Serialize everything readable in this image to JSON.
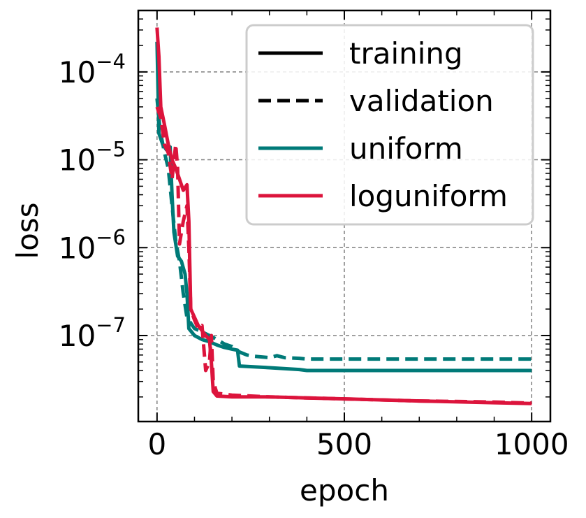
{
  "chart_data": {
    "type": "line",
    "title": "",
    "xlabel": "epoch",
    "ylabel": "loss",
    "xlim": [
      -50,
      1050
    ],
    "ylim": [
      1.05e-08,
      0.0005
    ],
    "yscale": "log",
    "grid": true,
    "legend_position": "top-right",
    "x_ticks": [
      {
        "value": 0,
        "label": "0"
      },
      {
        "value": 500,
        "label": "500"
      },
      {
        "value": 1000,
        "label": "1000"
      }
    ],
    "y_ticks": [
      {
        "value": 1e-07,
        "base": "10",
        "exp": "−7"
      },
      {
        "value": 1e-06,
        "base": "10",
        "exp": "−6"
      },
      {
        "value": 1e-05,
        "base": "10",
        "exp": "−5"
      },
      {
        "value": 0.0001,
        "base": "10",
        "exp": "−4"
      }
    ],
    "legend": [
      {
        "label": "training",
        "color": "#000000",
        "dash": false
      },
      {
        "label": "validation",
        "color": "#000000",
        "dash": true
      },
      {
        "label": "uniform",
        "color": "#007a78",
        "dash": false
      },
      {
        "label": "loguniform",
        "color": "#dc143c",
        "dash": false
      }
    ],
    "series": [
      {
        "group": "uniform",
        "kind": "validation",
        "color": "#007a78",
        "dash": true,
        "points": [
          [
            0,
            5e-05
          ],
          [
            8,
            2.2e-05
          ],
          [
            20,
            1.2e-05
          ],
          [
            30,
            8e-06
          ],
          [
            40,
            3e-06
          ],
          [
            50,
            1.2e-06
          ],
          [
            60,
            7e-07
          ],
          [
            70,
            3e-07
          ],
          [
            80,
            1.6e-07
          ],
          [
            100,
            1.2e-07
          ],
          [
            120,
            1.1e-07
          ],
          [
            140,
            1e-07
          ],
          [
            160,
            9e-08
          ],
          [
            180,
            8e-08
          ],
          [
            200,
            7.5e-08
          ],
          [
            220,
            6.5e-08
          ],
          [
            240,
            6e-08
          ],
          [
            260,
            5.8e-08
          ],
          [
            300,
            5.6e-08
          ],
          [
            320,
            5.9e-08
          ],
          [
            340,
            5.6e-08
          ],
          [
            380,
            5.5e-08
          ],
          [
            400,
            5.4e-08
          ],
          [
            500,
            5.4e-08
          ],
          [
            1000,
            5.4e-08
          ]
        ]
      },
      {
        "group": "uniform",
        "kind": "training",
        "color": "#007a78",
        "dash": false,
        "points": [
          [
            0,
            0.00022
          ],
          [
            5,
            2e-05
          ],
          [
            15,
            1.5e-05
          ],
          [
            25,
            1.3e-05
          ],
          [
            35,
            1.4e-05
          ],
          [
            40,
            4e-06
          ],
          [
            45,
            1.5e-06
          ],
          [
            55,
            8e-07
          ],
          [
            65,
            7e-07
          ],
          [
            75,
            5e-07
          ],
          [
            80,
            3e-07
          ],
          [
            85,
            1.2e-07
          ],
          [
            100,
            1e-07
          ],
          [
            120,
            9e-08
          ],
          [
            140,
            8.5e-08
          ],
          [
            160,
            7.8e-08
          ],
          [
            180,
            7.3e-08
          ],
          [
            200,
            7e-08
          ],
          [
            215,
            6.8e-08
          ],
          [
            220,
            4.5e-08
          ],
          [
            300,
            4.3e-08
          ],
          [
            380,
            4.1e-08
          ],
          [
            400,
            4e-08
          ],
          [
            1000,
            4e-08
          ]
        ]
      },
      {
        "group": "loguniform",
        "kind": "validation",
        "color": "#dc143c",
        "dash": true,
        "points": [
          [
            0,
            4e-05
          ],
          [
            10,
            3e-05
          ],
          [
            20,
            1.5e-05
          ],
          [
            30,
            1.2e-05
          ],
          [
            40,
            6e-06
          ],
          [
            50,
            1.5e-05
          ],
          [
            55,
            8e-06
          ],
          [
            60,
            1.1e-06
          ],
          [
            70,
            2e-06
          ],
          [
            80,
            3e-06
          ],
          [
            85,
            1e-06
          ],
          [
            90,
            2e-07
          ],
          [
            100,
            1.5e-07
          ],
          [
            110,
            1.2e-07
          ],
          [
            120,
            1.3e-07
          ],
          [
            130,
            4e-08
          ],
          [
            140,
            5e-08
          ],
          [
            145,
            1e-07
          ],
          [
            150,
            3e-08
          ],
          [
            160,
            2.2e-08
          ],
          [
            200,
            2.1e-08
          ],
          [
            300,
            2e-08
          ],
          [
            400,
            1.95e-08
          ],
          [
            500,
            1.9e-08
          ],
          [
            700,
            1.8e-08
          ],
          [
            900,
            1.75e-08
          ],
          [
            1000,
            1.7e-08
          ]
        ]
      },
      {
        "group": "loguniform",
        "kind": "training",
        "color": "#dc143c",
        "dash": false,
        "points": [
          [
            0,
            0.00032
          ],
          [
            5,
            0.00015
          ],
          [
            10,
            4e-05
          ],
          [
            20,
            2.5e-05
          ],
          [
            30,
            1.5e-05
          ],
          [
            40,
            1e-05
          ],
          [
            50,
            8e-06
          ],
          [
            60,
            6e-06
          ],
          [
            70,
            4.5e-06
          ],
          [
            80,
            5.2e-06
          ],
          [
            85,
            2e-06
          ],
          [
            90,
            2e-07
          ],
          [
            110,
            1.3e-07
          ],
          [
            130,
            1e-07
          ],
          [
            140,
            9e-08
          ],
          [
            145,
            5e-08
          ],
          [
            150,
            2.3e-08
          ],
          [
            160,
            2.05e-08
          ],
          [
            200,
            2e-08
          ],
          [
            300,
            2e-08
          ],
          [
            400,
            1.95e-08
          ],
          [
            500,
            1.9e-08
          ],
          [
            700,
            1.8e-08
          ],
          [
            900,
            1.72e-08
          ],
          [
            1000,
            1.68e-08
          ]
        ]
      }
    ]
  }
}
